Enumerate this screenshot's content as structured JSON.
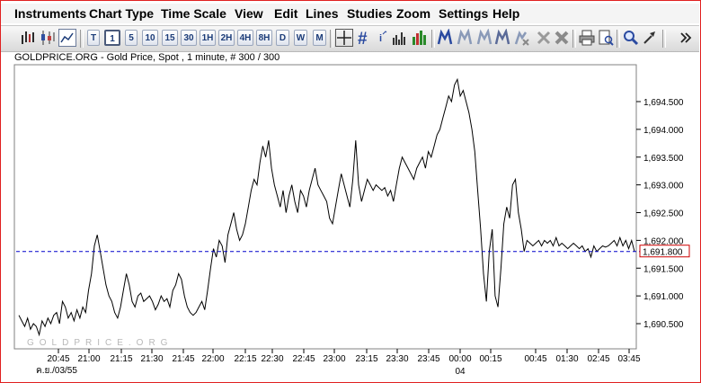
{
  "menu": [
    "Instruments",
    "Chart Type",
    "Time Scale",
    "View",
    "Edit",
    "Lines",
    "Studies",
    "Zoom",
    "Settings",
    "Help"
  ],
  "toolbar": {
    "intervals": [
      "T",
      "1",
      "5",
      "10",
      "15",
      "30",
      "1H",
      "2H",
      "4H",
      "8H",
      "D",
      "W",
      "M"
    ],
    "selected_interval": "1"
  },
  "chart_title": "GOLDPRICE.ORG - Gold Price, Spot , 1 minute, # 300 / 300",
  "watermark": "GOLDPRICE.ORG",
  "colors": {
    "line": "#000000",
    "ref_line": "#0000cc",
    "price_label_border": "#cc0000",
    "price_label_text": "#cc0000",
    "frame": "#e02020"
  },
  "chart_data": {
    "type": "line",
    "title": "GOLDPRICE.ORG - Gold Price, Spot , 1 minute, # 300 / 300",
    "yticks": [
      "1,694.500",
      "1,694.000",
      "1,693.500",
      "1,693.000",
      "1,692.500",
      "1,692.000",
      "1,691.500",
      "1,691.000",
      "1,690.500"
    ],
    "ylim": [
      1690.2,
      1695.0
    ],
    "xticks": [
      "20:45",
      "21:00",
      "21:15",
      "21:30",
      "21:45",
      "22:00",
      "22:15",
      "22:30",
      "22:45",
      "23:00",
      "23:15",
      "23:30",
      "23:45",
      "00:00",
      "00:15",
      "00:45",
      "01:30",
      "02:45",
      "03:45"
    ],
    "xtick_secondary": [
      {
        "under": "00:00",
        "label": "04"
      }
    ],
    "date_label": "ค.ย./03/55",
    "current_price": "1,691.800",
    "series": [
      {
        "values": [
          1690.65,
          1690.55,
          1690.45,
          1690.6,
          1690.4,
          1690.5,
          1690.45,
          1690.3,
          1690.55,
          1690.45,
          1690.6,
          1690.5,
          1690.65,
          1690.7,
          1690.5,
          1690.9,
          1690.8,
          1690.6,
          1690.7,
          1690.55,
          1690.75,
          1690.6,
          1690.8,
          1690.7,
          1691.1,
          1691.4,
          1691.9,
          1692.1,
          1691.8,
          1691.5,
          1691.2,
          1691.0,
          1690.9,
          1690.7,
          1690.6,
          1690.8,
          1691.1,
          1691.4,
          1691.2,
          1690.9,
          1690.8,
          1691.0,
          1691.05,
          1690.9,
          1690.95,
          1691.0,
          1690.9,
          1690.75,
          1690.85,
          1691.0,
          1690.9,
          1690.95,
          1690.8,
          1691.1,
          1691.2,
          1691.4,
          1691.3,
          1691.0,
          1690.8,
          1690.7,
          1690.65,
          1690.7,
          1690.8,
          1690.9,
          1690.75,
          1691.1,
          1691.5,
          1691.85,
          1691.7,
          1692.0,
          1691.9,
          1691.6,
          1692.1,
          1692.3,
          1692.5,
          1692.2,
          1692.0,
          1692.1,
          1692.3,
          1692.6,
          1692.9,
          1693.1,
          1693.0,
          1693.4,
          1693.7,
          1693.5,
          1693.8,
          1693.3,
          1693.0,
          1692.8,
          1692.6,
          1692.9,
          1692.5,
          1692.8,
          1693.0,
          1692.7,
          1692.5,
          1692.9,
          1692.8,
          1692.6,
          1692.9,
          1693.1,
          1693.3,
          1693.0,
          1692.9,
          1692.8,
          1692.7,
          1692.4,
          1692.3,
          1692.6,
          1692.9,
          1693.2,
          1693.0,
          1692.8,
          1692.6,
          1693.1,
          1693.8,
          1693.0,
          1692.7,
          1692.9,
          1693.1,
          1693.0,
          1692.9,
          1693.0,
          1692.95,
          1692.9,
          1692.95,
          1692.8,
          1692.9,
          1692.7,
          1693.0,
          1693.3,
          1693.5,
          1693.4,
          1693.3,
          1693.2,
          1693.1,
          1693.3,
          1693.4,
          1693.5,
          1693.3,
          1693.6,
          1693.5,
          1693.7,
          1693.9,
          1694.0,
          1694.2,
          1694.4,
          1694.6,
          1694.5,
          1694.8,
          1694.9,
          1694.6,
          1694.7,
          1694.5,
          1694.3,
          1694.0,
          1693.6,
          1692.9,
          1692.2,
          1691.4,
          1690.9,
          1691.8,
          1692.2,
          1691.0,
          1690.8,
          1691.5,
          1692.3,
          1692.6,
          1692.4,
          1693.0,
          1693.1,
          1692.5,
          1692.2,
          1691.8,
          1692.0,
          1691.95,
          1691.9,
          1691.95,
          1692.0,
          1691.9,
          1692.0,
          1691.95,
          1692.0,
          1691.9,
          1692.05,
          1691.9,
          1691.95,
          1691.9,
          1691.85,
          1691.9,
          1691.95,
          1691.9,
          1691.85,
          1691.9,
          1691.8,
          1691.85,
          1691.7,
          1691.9,
          1691.8,
          1691.85,
          1691.9,
          1691.88,
          1691.9,
          1691.95,
          1692.0,
          1691.9,
          1692.05,
          1691.9,
          1692.0,
          1691.85,
          1692.0,
          1691.8
        ]
      }
    ],
    "ref_line_value": 1691.8,
    "grid": false
  }
}
